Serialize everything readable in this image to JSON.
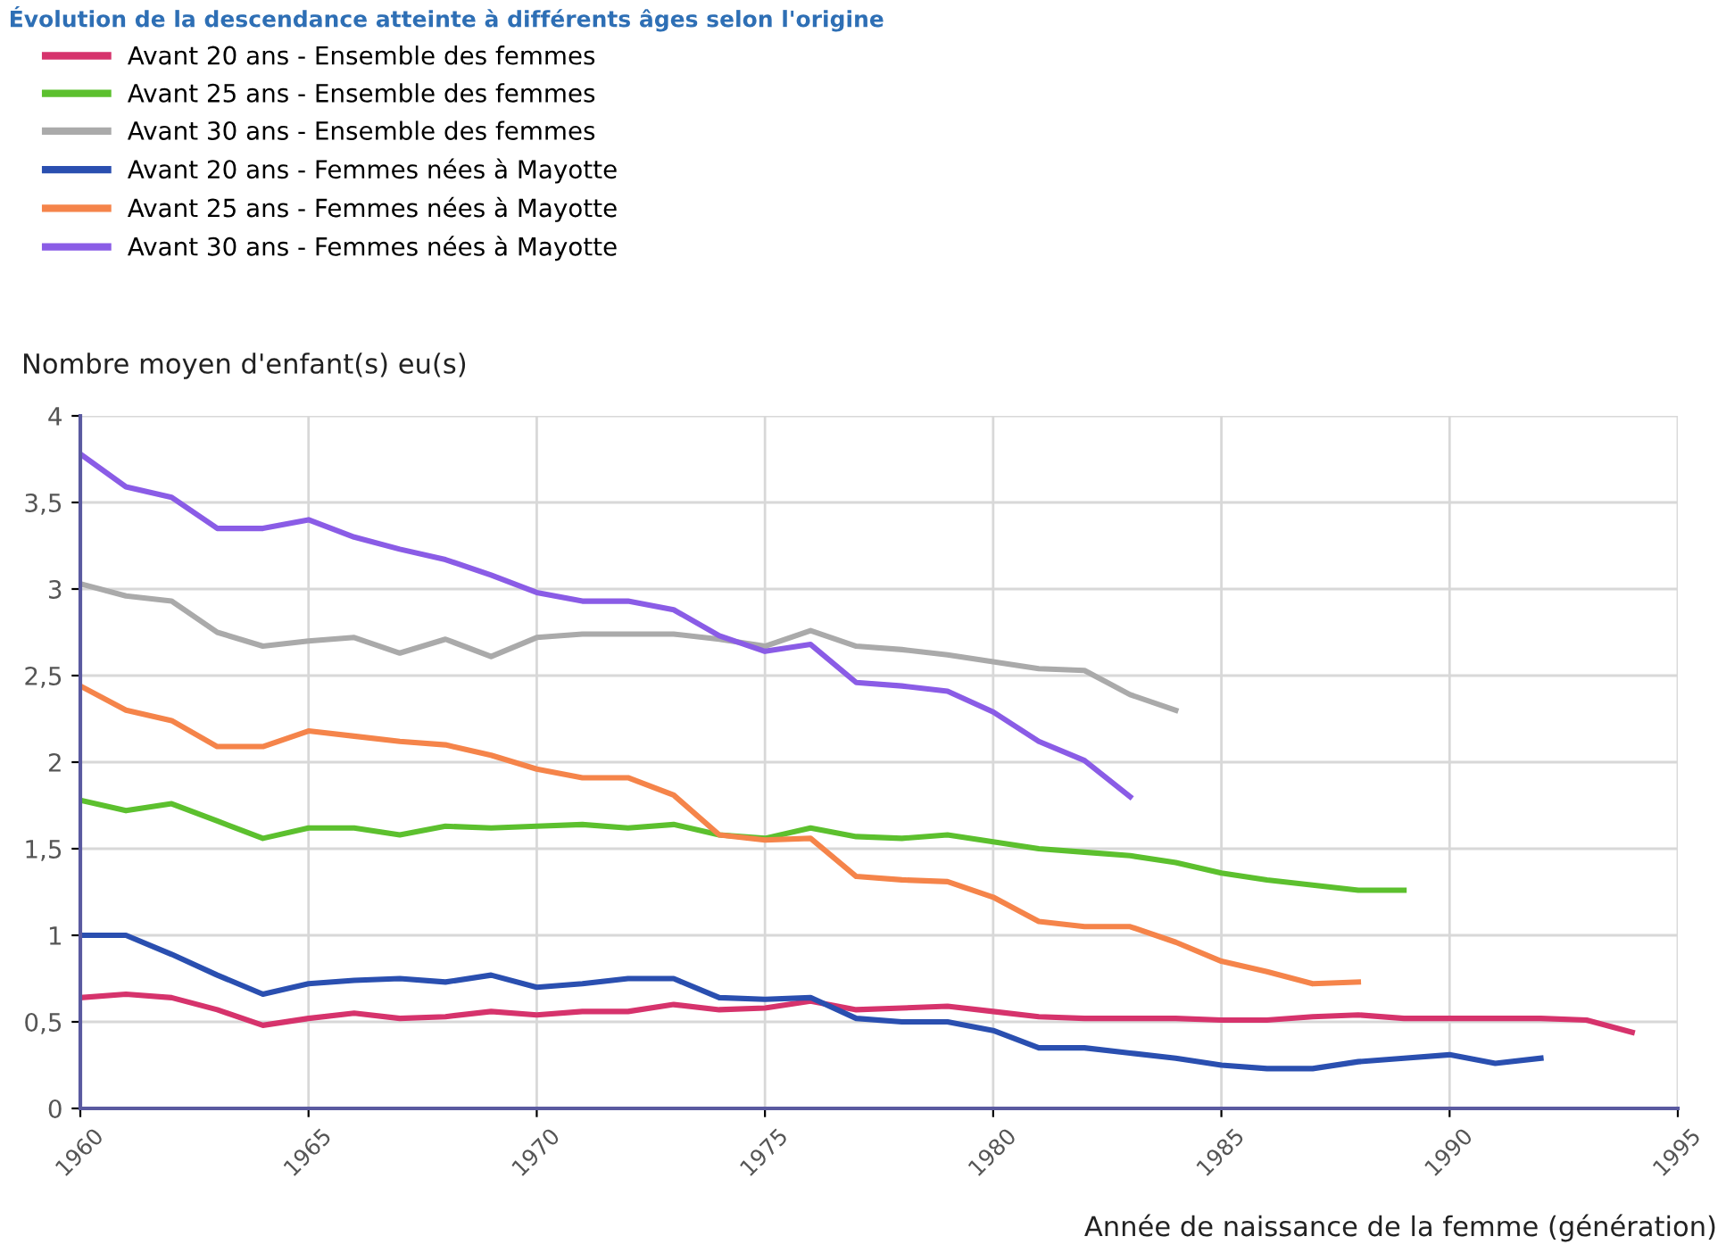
{
  "chart_data": {
    "type": "line",
    "title": "Évolution de la descendance atteinte à différents âges selon l'origine",
    "ylabel": "Nombre moyen d'enfant(s) eu(s)",
    "xlabel": "Année de naissance de la femme (génération)",
    "xlim": [
      1960,
      1995
    ],
    "xticks": [
      1960,
      1965,
      1970,
      1975,
      1980,
      1985,
      1990,
      1995
    ],
    "ylim": [
      0,
      4
    ],
    "yticks": [
      0,
      {
        "value": 0.5,
        "label": "0,5"
      },
      1,
      {
        "value": 1.5,
        "label": "1,5"
      },
      2,
      {
        "value": 2.5,
        "label": "2,5"
      },
      3,
      {
        "value": 3.5,
        "label": "3,5"
      },
      4
    ],
    "grid": true,
    "legend": "top",
    "marker": "none",
    "line_style": "solid",
    "series": [
      {
        "name": "Avant 20 ans - Ensemble des femmes",
        "color": "#d6336c",
        "x": [
          1960,
          1961,
          1962,
          1963,
          1964,
          1965,
          1966,
          1967,
          1968,
          1969,
          1970,
          1971,
          1972,
          1973,
          1974,
          1975,
          1976,
          1977,
          1978,
          1979,
          1980,
          1981,
          1982,
          1983,
          1984,
          1985,
          1986,
          1987,
          1988,
          1989,
          1990,
          1991,
          1992,
          1993,
          1994
        ],
        "values": [
          0.64,
          0.66,
          0.64,
          0.57,
          0.48,
          0.52,
          0.55,
          0.52,
          0.53,
          0.56,
          0.54,
          0.56,
          0.56,
          0.6,
          0.57,
          0.58,
          0.62,
          0.57,
          0.58,
          0.59,
          0.56,
          0.53,
          0.52,
          0.52,
          0.52,
          0.51,
          0.51,
          0.53,
          0.54,
          0.52,
          0.52,
          0.52,
          0.52,
          0.51,
          0.44
        ]
      },
      {
        "name": "Avant 25 ans - Ensemble des femmes",
        "color": "#5cc02e",
        "x": [
          1960,
          1961,
          1962,
          1963,
          1964,
          1965,
          1966,
          1967,
          1968,
          1969,
          1970,
          1971,
          1972,
          1973,
          1974,
          1975,
          1976,
          1977,
          1978,
          1979,
          1980,
          1981,
          1982,
          1983,
          1984,
          1985,
          1986,
          1987,
          1988,
          1989
        ],
        "values": [
          1.78,
          1.72,
          1.76,
          1.66,
          1.56,
          1.62,
          1.62,
          1.58,
          1.63,
          1.62,
          1.63,
          1.64,
          1.62,
          1.64,
          1.58,
          1.56,
          1.62,
          1.57,
          1.56,
          1.58,
          1.54,
          1.5,
          1.48,
          1.46,
          1.42,
          1.36,
          1.32,
          1.29,
          1.26,
          1.26
        ]
      },
      {
        "name": "Avant 30 ans - Ensemble des femmes",
        "color": "#aaaaaa",
        "x": [
          1960,
          1961,
          1962,
          1963,
          1964,
          1965,
          1966,
          1967,
          1968,
          1969,
          1970,
          1971,
          1972,
          1973,
          1974,
          1975,
          1976,
          1977,
          1978,
          1979,
          1980,
          1981,
          1982,
          1983,
          1984
        ],
        "values": [
          3.03,
          2.96,
          2.93,
          2.75,
          2.67,
          2.7,
          2.72,
          2.63,
          2.71,
          2.61,
          2.72,
          2.74,
          2.74,
          2.74,
          2.71,
          2.67,
          2.76,
          2.67,
          2.65,
          2.62,
          2.58,
          2.54,
          2.53,
          2.39,
          2.3
        ]
      },
      {
        "name": "Avant 20 ans - Femmes nées à Mayotte",
        "color": "#2a4fb0",
        "x": [
          1960,
          1961,
          1962,
          1963,
          1964,
          1965,
          1966,
          1967,
          1968,
          1969,
          1970,
          1971,
          1972,
          1973,
          1974,
          1975,
          1976,
          1977,
          1978,
          1979,
          1980,
          1981,
          1982,
          1983,
          1984,
          1985,
          1986,
          1987,
          1988,
          1989,
          1990,
          1991,
          1992
        ],
        "values": [
          1.0,
          1.0,
          0.89,
          0.77,
          0.66,
          0.72,
          0.74,
          0.75,
          0.73,
          0.77,
          0.7,
          0.72,
          0.75,
          0.75,
          0.64,
          0.63,
          0.64,
          0.52,
          0.5,
          0.5,
          0.45,
          0.35,
          0.35,
          0.32,
          0.29,
          0.25,
          0.23,
          0.23,
          0.27,
          0.29,
          0.31,
          0.26,
          0.29
        ]
      },
      {
        "name": "Avant 25 ans - Femmes nées à Mayotte",
        "color": "#f5844a",
        "x": [
          1960,
          1961,
          1962,
          1963,
          1964,
          1965,
          1966,
          1967,
          1968,
          1969,
          1970,
          1971,
          1972,
          1973,
          1974,
          1975,
          1976,
          1977,
          1978,
          1979,
          1980,
          1981,
          1982,
          1983,
          1984,
          1985,
          1986,
          1987,
          1988
        ],
        "values": [
          2.44,
          2.3,
          2.24,
          2.09,
          2.09,
          2.18,
          2.15,
          2.12,
          2.1,
          2.04,
          1.96,
          1.91,
          1.91,
          1.81,
          1.58,
          1.55,
          1.56,
          1.34,
          1.32,
          1.31,
          1.22,
          1.08,
          1.05,
          1.05,
          0.96,
          0.85,
          0.79,
          0.72,
          0.73
        ]
      },
      {
        "name": "Avant 30 ans - Femmes nées à Mayotte",
        "color": "#8a5ce6",
        "x": [
          1960,
          1961,
          1962,
          1963,
          1964,
          1965,
          1966,
          1967,
          1968,
          1969,
          1970,
          1971,
          1972,
          1973,
          1974,
          1975,
          1976,
          1977,
          1978,
          1979,
          1980,
          1981,
          1982,
          1983
        ],
        "values": [
          3.78,
          3.59,
          3.53,
          3.35,
          3.35,
          3.4,
          3.3,
          3.23,
          3.17,
          3.08,
          2.98,
          2.93,
          2.93,
          2.88,
          2.73,
          2.64,
          2.68,
          2.46,
          2.44,
          2.41,
          2.29,
          2.12,
          2.01,
          1.8
        ]
      }
    ]
  }
}
